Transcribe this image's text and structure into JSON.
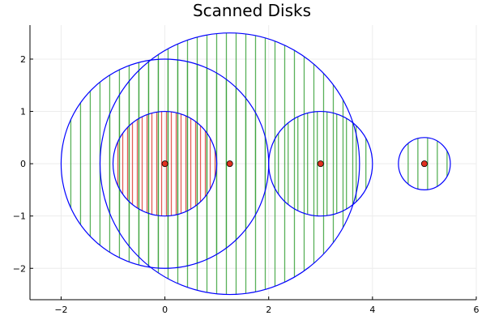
{
  "chart_data": {
    "type": "scatter",
    "title": "Scanned Disks",
    "xlabel": "",
    "ylabel": "",
    "xlim": [
      -2.6,
      6.0
    ],
    "ylim": [
      -2.6,
      2.65
    ],
    "xticks": [
      -2,
      0,
      2,
      4,
      6
    ],
    "yticks": [
      -2,
      -1,
      0,
      1,
      2
    ],
    "x_tick_labels": [
      "−2",
      "0",
      "2",
      "4",
      "6"
    ],
    "y_tick_labels": [
      "−2",
      "−1",
      "0",
      "1",
      "2"
    ],
    "grid": true,
    "legend": "none",
    "disks": [
      {
        "center_x": 0.0,
        "center_y": 0.0,
        "radius": 2.0
      },
      {
        "center_x": 1.25,
        "center_y": 0.0,
        "radius": 2.5
      },
      {
        "center_x": 0.0,
        "center_y": 0.0,
        "radius": 1.0
      },
      {
        "center_x": 3.0,
        "center_y": 0.0,
        "radius": 1.0
      },
      {
        "center_x": 5.0,
        "center_y": 0.0,
        "radius": 0.5
      }
    ],
    "centers": [
      {
        "x": 0.0,
        "y": 0.0
      },
      {
        "x": 1.25,
        "y": 0.0
      },
      {
        "x": 3.0,
        "y": 0.0
      },
      {
        "x": 5.0,
        "y": 0.0
      }
    ],
    "colors": {
      "disk_outline": "#0000ff",
      "scan_line": "#3ca33c",
      "inner_scan_line": "#e0403a",
      "center_marker": "#e03020",
      "axis": "#000000",
      "grid": "#ececec"
    }
  }
}
